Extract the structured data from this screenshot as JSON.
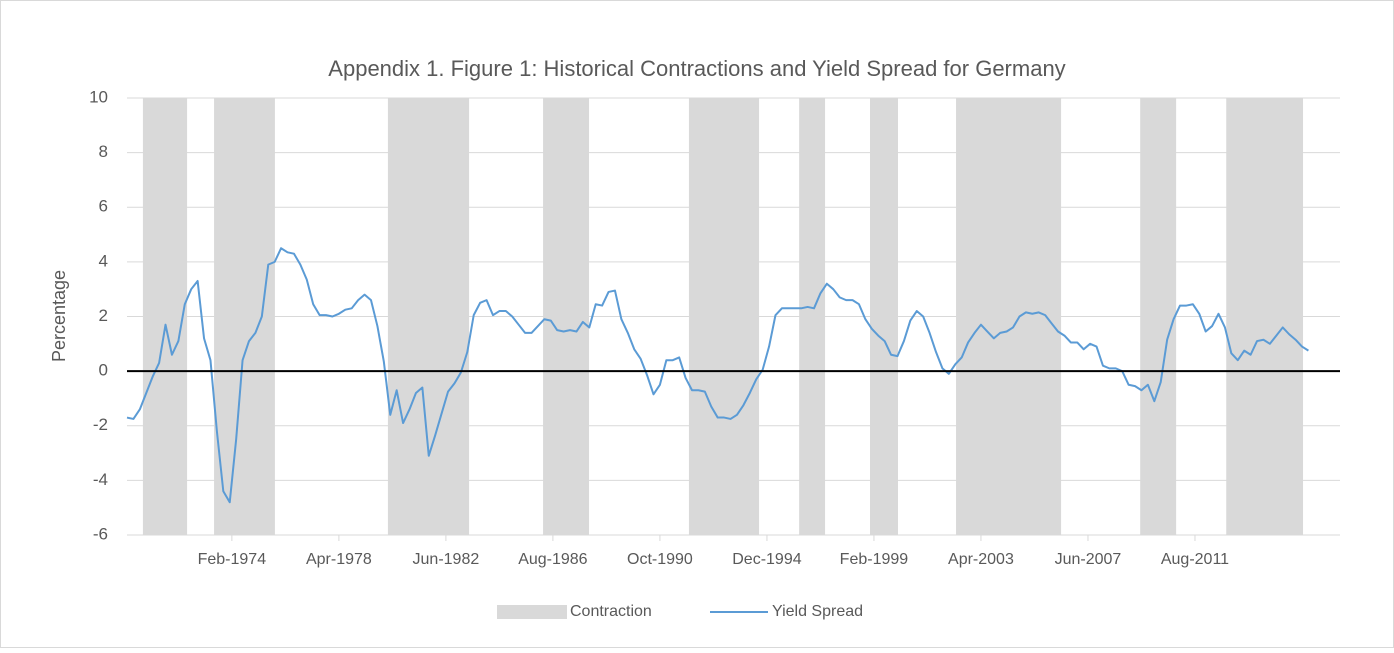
{
  "chart_data": {
    "type": "line",
    "title": "Appendix 1. Figure 1: Historical Contractions and Yield Spread for Germany",
    "y_label": "Percentage",
    "xlim": [
      1970,
      2017.23
    ],
    "xticks": [
      {
        "value": 1974.083,
        "label": "Feb-1974"
      },
      {
        "value": 1978.25,
        "label": "Apr-1978"
      },
      {
        "value": 1982.417,
        "label": "Jun-1982"
      },
      {
        "value": 1986.583,
        "label": "Aug-1986"
      },
      {
        "value": 1990.75,
        "label": "Oct-1990"
      },
      {
        "value": 1994.917,
        "label": "Dec-1994"
      },
      {
        "value": 1999.083,
        "label": "Feb-1999"
      },
      {
        "value": 2003.25,
        "label": "Apr-2003"
      },
      {
        "value": 2007.417,
        "label": "Jun-2007"
      },
      {
        "value": 2011.583,
        "label": "Aug-2011"
      }
    ],
    "ylim": [
      -6,
      10
    ],
    "yticks": [
      -6,
      -4,
      -2,
      0,
      2,
      4,
      6,
      8,
      10
    ],
    "grid": true,
    "legend": "bottom",
    "x": [
      1970,
      1970.25,
      1970.5,
      1970.75,
      1971,
      1971.25,
      1971.5,
      1971.75,
      1972,
      1972.25,
      1972.5,
      1972.75,
      1973,
      1973.25,
      1973.5,
      1973.75,
      1974,
      1974.25,
      1974.5,
      1974.75,
      1975,
      1975.25,
      1975.5,
      1975.75,
      1976,
      1976.25,
      1976.5,
      1976.75,
      1977,
      1977.25,
      1977.5,
      1977.75,
      1978,
      1978.25,
      1978.5,
      1978.75,
      1979,
      1979.25,
      1979.5,
      1979.75,
      1980,
      1980.25,
      1980.5,
      1980.75,
      1981,
      1981.25,
      1981.5,
      1981.75,
      1982,
      1982.25,
      1982.5,
      1982.75,
      1983,
      1983.25,
      1983.5,
      1983.75,
      1984,
      1984.25,
      1984.5,
      1984.75,
      1985,
      1985.25,
      1985.5,
      1985.75,
      1986,
      1986.25,
      1986.5,
      1986.75,
      1987,
      1987.25,
      1987.5,
      1987.75,
      1988,
      1988.25,
      1988.5,
      1988.75,
      1989,
      1989.25,
      1989.5,
      1989.75,
      1990,
      1990.25,
      1990.5,
      1990.75,
      1991,
      1991.25,
      1991.5,
      1991.75,
      1992,
      1992.25,
      1992.5,
      1992.75,
      1993,
      1993.25,
      1993.5,
      1993.75,
      1994,
      1994.25,
      1994.5,
      1994.75,
      1995,
      1995.25,
      1995.5,
      1995.75,
      1996,
      1996.25,
      1996.5,
      1996.75,
      1997,
      1997.25,
      1997.5,
      1997.75,
      1998,
      1998.25,
      1998.5,
      1998.75,
      1999,
      1999.25,
      1999.5,
      1999.75,
      2000,
      2000.25,
      2000.5,
      2000.75,
      2001,
      2001.25,
      2001.5,
      2001.75,
      2002,
      2002.25,
      2002.5,
      2002.75,
      2003,
      2003.25,
      2003.5,
      2003.75,
      2004,
      2004.25,
      2004.5,
      2004.75,
      2005,
      2005.25,
      2005.5,
      2005.75,
      2006,
      2006.25,
      2006.5,
      2006.75,
      2007,
      2007.25,
      2007.5,
      2007.75,
      2008,
      2008.25,
      2008.5,
      2008.75,
      2009,
      2009.25,
      2009.5,
      2009.75,
      2010,
      2010.25,
      2010.5,
      2010.75,
      2011,
      2011.25,
      2011.5,
      2011.75,
      2012,
      2012.25,
      2012.5,
      2012.75,
      2013,
      2013.25,
      2013.5,
      2013.75,
      2014,
      2014.25,
      2014.5,
      2014.75,
      2015,
      2015.25,
      2015.5,
      2015.75,
      2016
    ],
    "series": [
      {
        "name": "Contraction",
        "type": "band",
        "color": "#d9d9d9",
        "ranges": [
          [
            1970.62,
            1972.34
          ],
          [
            1973.39,
            1975.76
          ],
          [
            1980.16,
            1983.32
          ],
          [
            1986.2,
            1987.99
          ],
          [
            1991.88,
            1994.61
          ],
          [
            1996.17,
            1997.18
          ],
          [
            1998.93,
            2000.02
          ],
          [
            2002.28,
            2006.37
          ],
          [
            2009.45,
            2010.85
          ],
          [
            2012.8,
            2015.79
          ]
        ]
      },
      {
        "name": "Yield Spread",
        "type": "line",
        "color": "#5b9bd5",
        "values": [
          -1.7,
          -1.75,
          -1.4,
          -0.8,
          -0.2,
          0.3,
          1.7,
          0.6,
          1.1,
          2.45,
          3.0,
          3.3,
          1.2,
          0.4,
          -2.2,
          -4.4,
          -4.8,
          -2.5,
          0.4,
          1.1,
          1.4,
          2.0,
          3.9,
          4.0,
          4.5,
          4.35,
          4.3,
          3.9,
          3.35,
          2.45,
          2.05,
          2.05,
          2.0,
          2.1,
          2.25,
          2.3,
          2.6,
          2.8,
          2.6,
          1.65,
          0.35,
          -1.6,
          -0.7,
          -1.9,
          -1.4,
          -0.8,
          -0.6,
          -3.1,
          -2.35,
          -1.55,
          -0.75,
          -0.45,
          -0.05,
          0.7,
          2.05,
          2.5,
          2.6,
          2.05,
          2.2,
          2.2,
          2.0,
          1.7,
          1.4,
          1.4,
          1.65,
          1.9,
          1.85,
          1.5,
          1.45,
          1.5,
          1.45,
          1.8,
          1.6,
          2.45,
          2.4,
          2.9,
          2.95,
          1.9,
          1.4,
          0.8,
          0.45,
          -0.15,
          -0.85,
          -0.5,
          0.4,
          0.4,
          0.5,
          -0.25,
          -0.7,
          -0.7,
          -0.75,
          -1.3,
          -1.7,
          -1.7,
          -1.75,
          -1.6,
          -1.25,
          -0.8,
          -0.3,
          0.05,
          0.9,
          2.05,
          2.3,
          2.3,
          2.3,
          2.3,
          2.35,
          2.3,
          2.85,
          3.2,
          3.0,
          2.7,
          2.6,
          2.6,
          2.45,
          1.9,
          1.55,
          1.3,
          1.1,
          0.6,
          0.55,
          1.1,
          1.85,
          2.2,
          2.0,
          1.4,
          0.7,
          0.1,
          -0.1,
          0.25,
          0.5,
          1.05,
          1.4,
          1.7,
          1.45,
          1.2,
          1.4,
          1.45,
          1.6,
          2.0,
          2.15,
          2.1,
          2.15,
          2.05,
          1.75,
          1.45,
          1.3,
          1.05,
          1.05,
          0.8,
          1.0,
          0.9,
          0.2,
          0.1,
          0.1,
          0.0,
          -0.5,
          -0.55,
          -0.7,
          -0.5,
          -1.1,
          -0.4,
          1.15,
          1.9,
          2.4,
          2.4,
          2.45,
          2.1,
          1.45,
          1.65,
          2.1,
          1.6,
          0.65,
          0.4,
          0.75,
          0.6,
          1.1,
          1.15,
          1.0,
          1.3,
          1.6,
          1.35,
          1.15,
          0.9,
          0.75
        ]
      }
    ]
  }
}
